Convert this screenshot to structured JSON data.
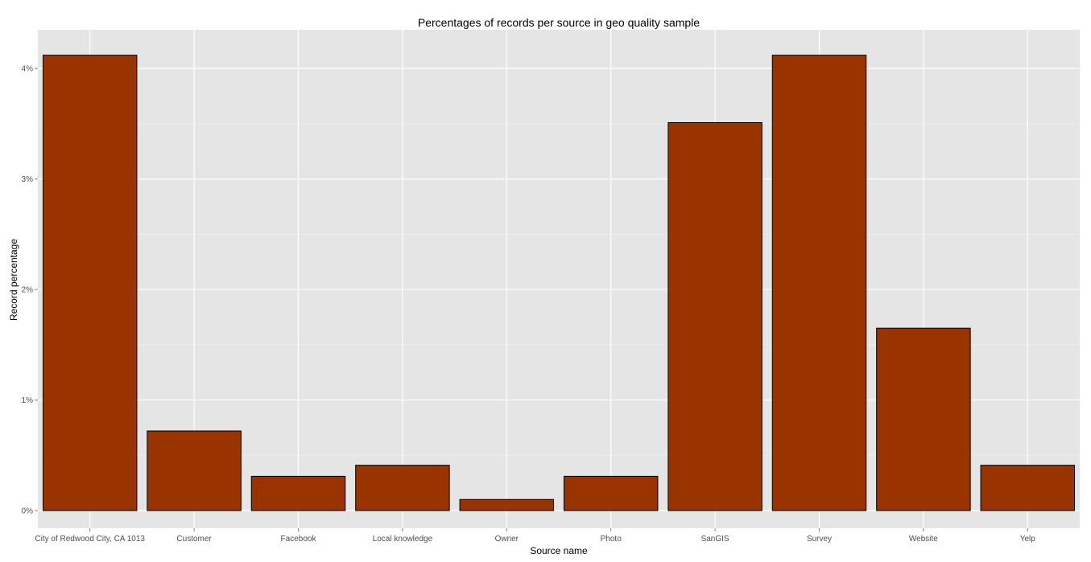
{
  "chart_data": {
    "type": "bar",
    "title": "Percentages of records per source in geo quality sample",
    "xlabel": "Source name",
    "ylabel": "Record percentage",
    "categories": [
      "City of Redwood City, CA 1013",
      "Customer",
      "Facebook",
      "Local knowledge",
      "Owner",
      "Photo",
      "SanGIS",
      "Survey",
      "Website",
      "Yelp"
    ],
    "values": [
      4.12,
      0.72,
      0.31,
      0.41,
      0.1,
      0.31,
      3.51,
      4.12,
      1.65,
      0.41
    ],
    "ylim": [
      -0.16,
      4.35
    ],
    "y_ticks": [
      0,
      1,
      2,
      3,
      4
    ],
    "y_tick_labels": [
      "0%",
      "1%",
      "2%",
      "3%",
      "4%"
    ],
    "grid": true,
    "legend": "none",
    "colors": {
      "bar_fill": "#993300",
      "bar_stroke": "#000000",
      "panel_background": "#e5e5e5",
      "grid_major": "#ffffff",
      "grid_minor": "#f2f2f2"
    }
  }
}
